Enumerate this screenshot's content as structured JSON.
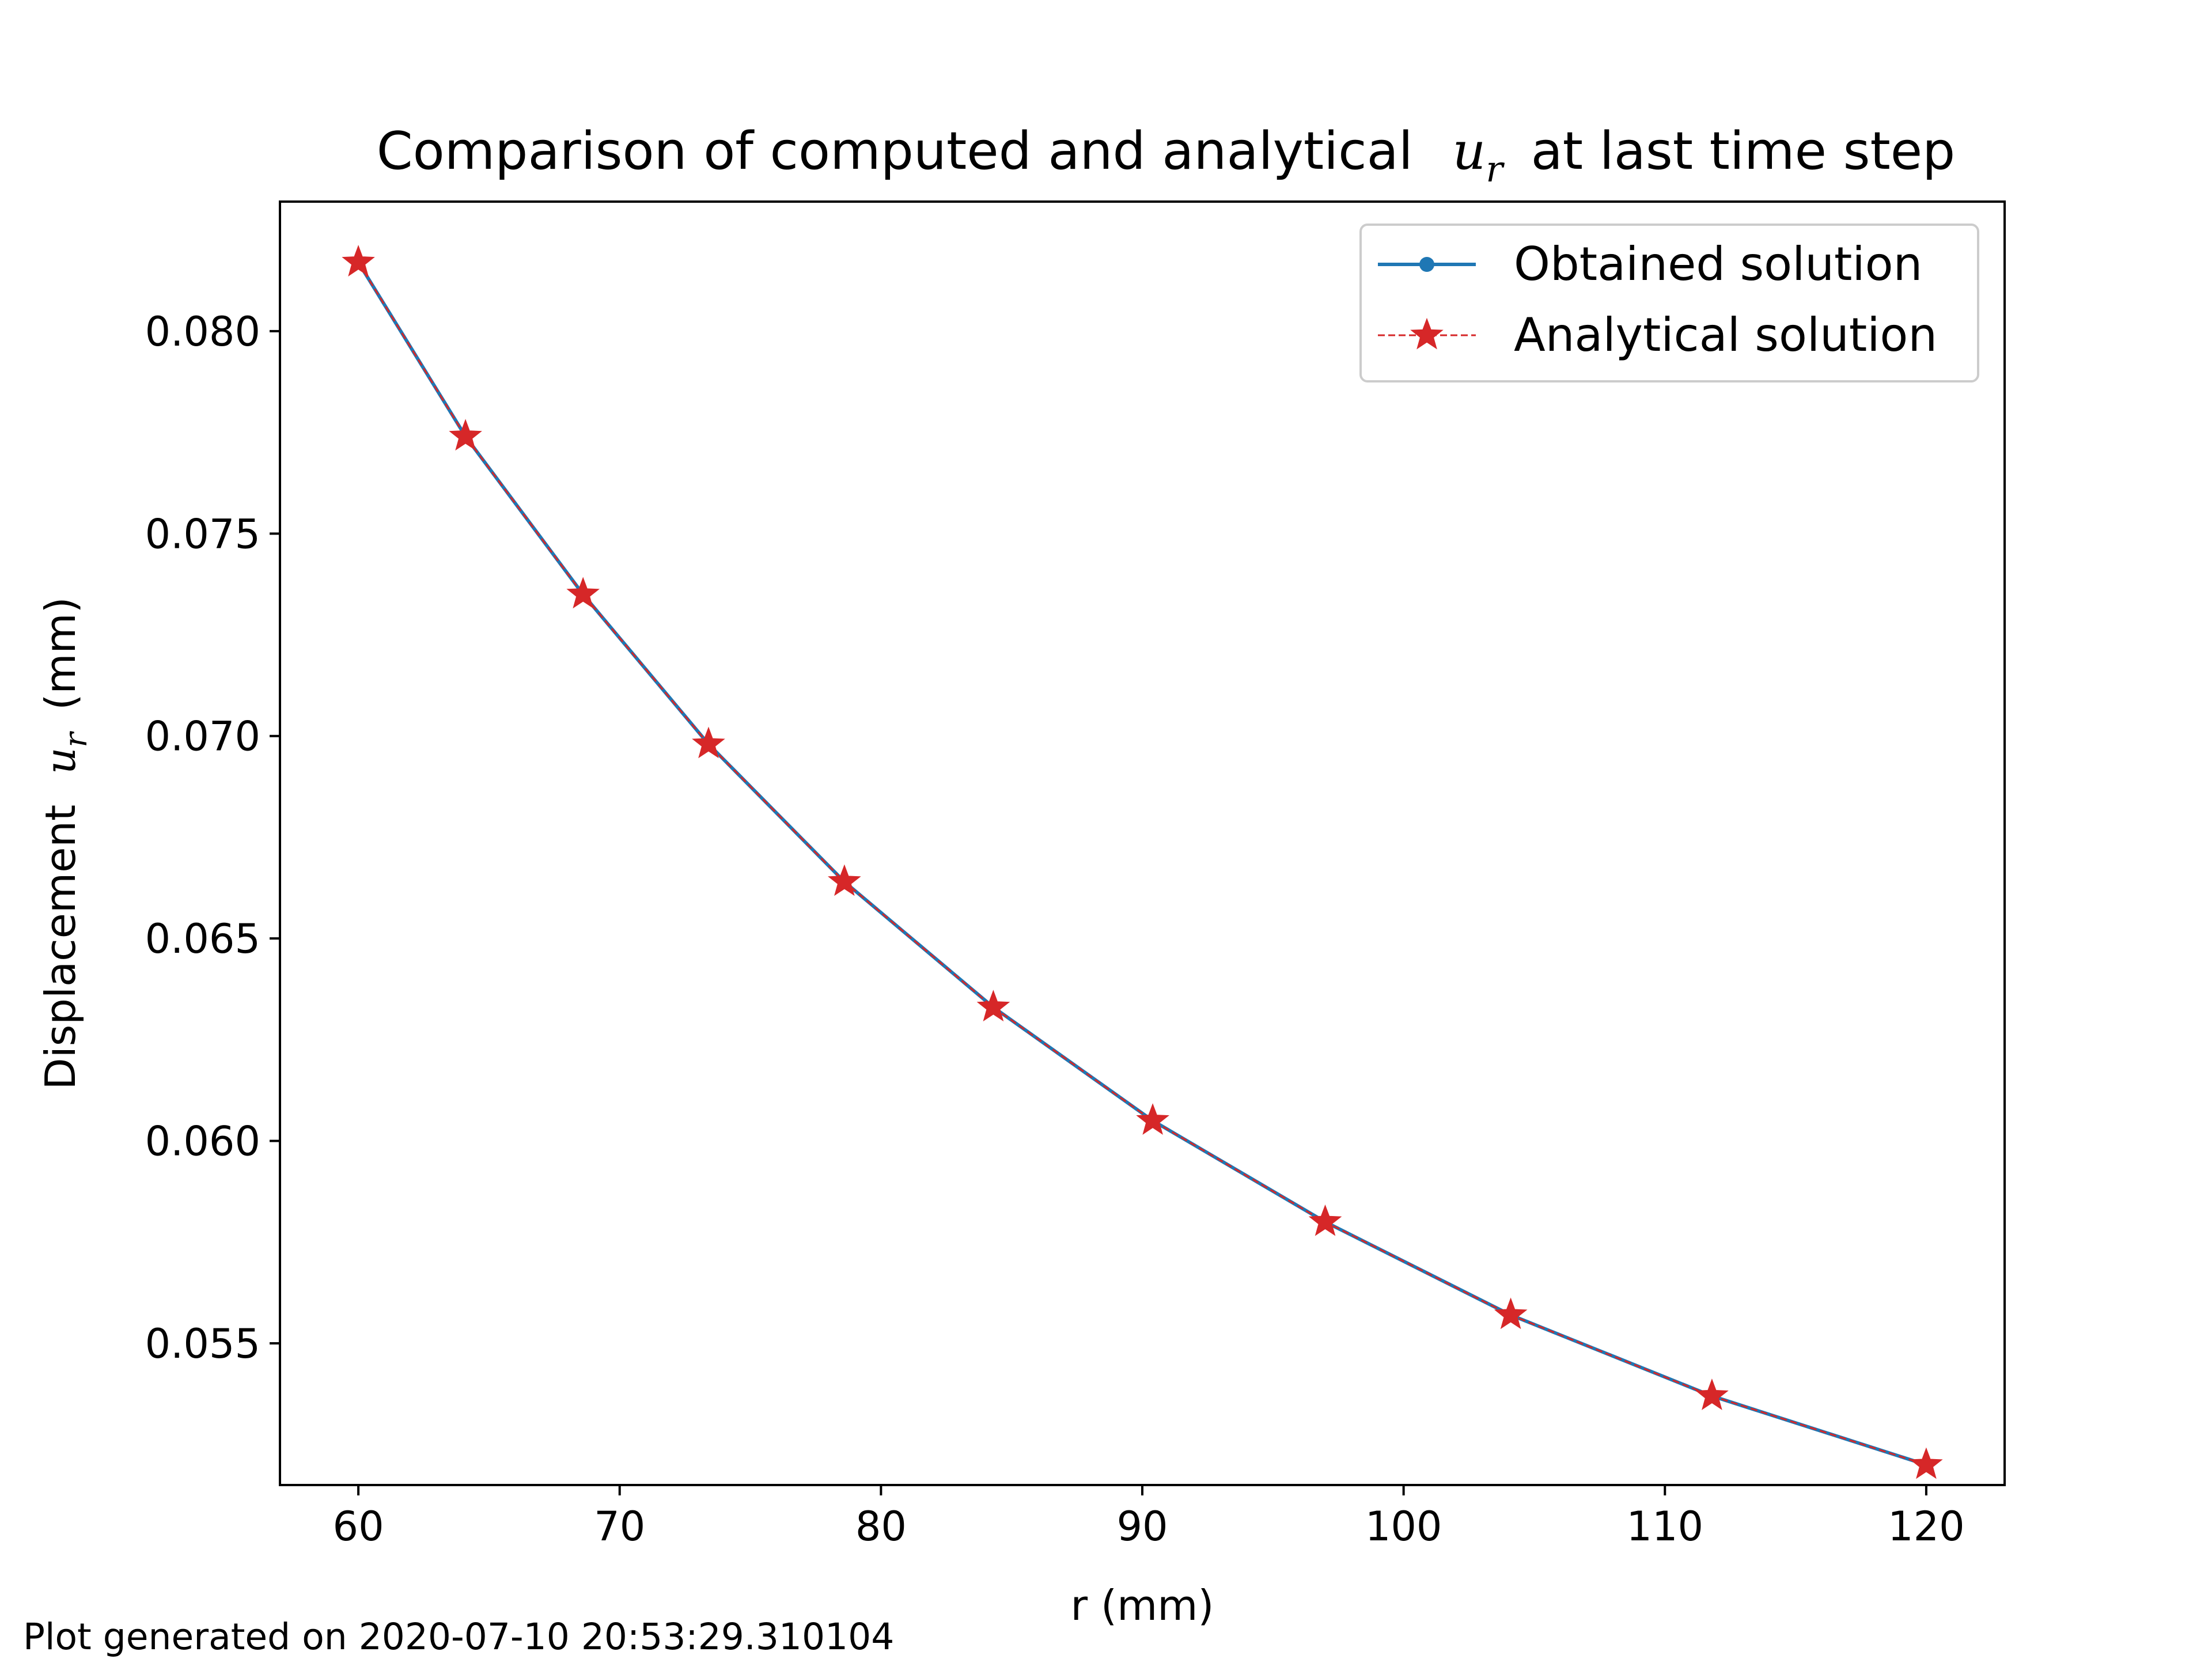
{
  "chart_data": {
    "type": "line",
    "title_main": "Comparison of computed and analytical",
    "title_var": "u",
    "title_sub": "r",
    "title_tail": "at last time step",
    "xlabel": "r (mm)",
    "ylabel_main": "Displacement",
    "ylabel_var": "u",
    "ylabel_sub": "r",
    "ylabel_tail": "(mm)",
    "xlim": [
      57,
      123
    ],
    "ylim": [
      0.0515,
      0.0832
    ],
    "xticks": [
      60,
      70,
      80,
      90,
      100,
      110,
      120
    ],
    "xtick_labels": [
      "60",
      "70",
      "80",
      "90",
      "100",
      "110",
      "120"
    ],
    "yticks": [
      0.055,
      0.06,
      0.065,
      0.07,
      0.075,
      0.08
    ],
    "ytick_labels": [
      "0.055",
      "0.060",
      "0.065",
      "0.070",
      "0.075",
      "0.080"
    ],
    "grid": false,
    "legend_position": "top-right",
    "x": [
      60.0,
      64.1,
      68.6,
      73.4,
      78.6,
      84.3,
      90.4,
      97.0,
      104.1,
      111.8,
      120.0
    ],
    "series": [
      {
        "name": "Obtained solution",
        "style": "solid-dot",
        "color": "#1f77b4",
        "values": [
          0.0817,
          0.0774,
          0.0735,
          0.0698,
          0.0664,
          0.0633,
          0.0605,
          0.058,
          0.0557,
          0.0537,
          0.052
        ]
      },
      {
        "name": "Analytical solution",
        "style": "dashed-star",
        "color": "#d62728",
        "values": [
          0.0817,
          0.0774,
          0.0735,
          0.0698,
          0.0664,
          0.0633,
          0.0605,
          0.058,
          0.0557,
          0.0537,
          0.052
        ]
      }
    ]
  },
  "footer": {
    "text": "Plot generated on 2020-07-10 20:53:29.310104"
  }
}
